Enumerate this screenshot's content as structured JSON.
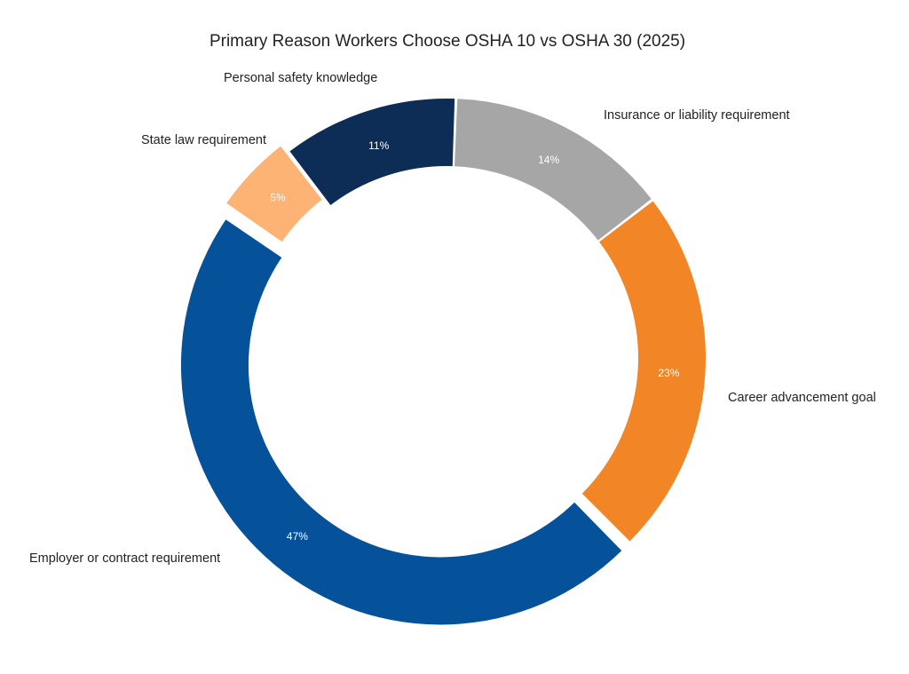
{
  "chart_data": {
    "type": "pie",
    "title": "Primary Reason Workers Choose OSHA 10 vs OSHA 30 (2025)",
    "donut": true,
    "slices": [
      {
        "label": "Personal safety knowledge",
        "value": 11,
        "value_label": "11%",
        "color": "#0d2d57"
      },
      {
        "label": "Insurance or liability requirement",
        "value": 14,
        "value_label": "14%",
        "color": "#a6a6a6"
      },
      {
        "label": "Career advancement goal",
        "value": 23,
        "value_label": "23%",
        "color": "#f28627"
      },
      {
        "label": "Employer or contract requirement",
        "value": 47,
        "value_label": "47%",
        "color": "#05519a"
      },
      {
        "label": "State law requirement",
        "value": 5,
        "value_label": "5%",
        "color": "#fcb374"
      }
    ],
    "exploded_slices": [
      "Employer or contract requirement",
      "State law requirement"
    ]
  }
}
